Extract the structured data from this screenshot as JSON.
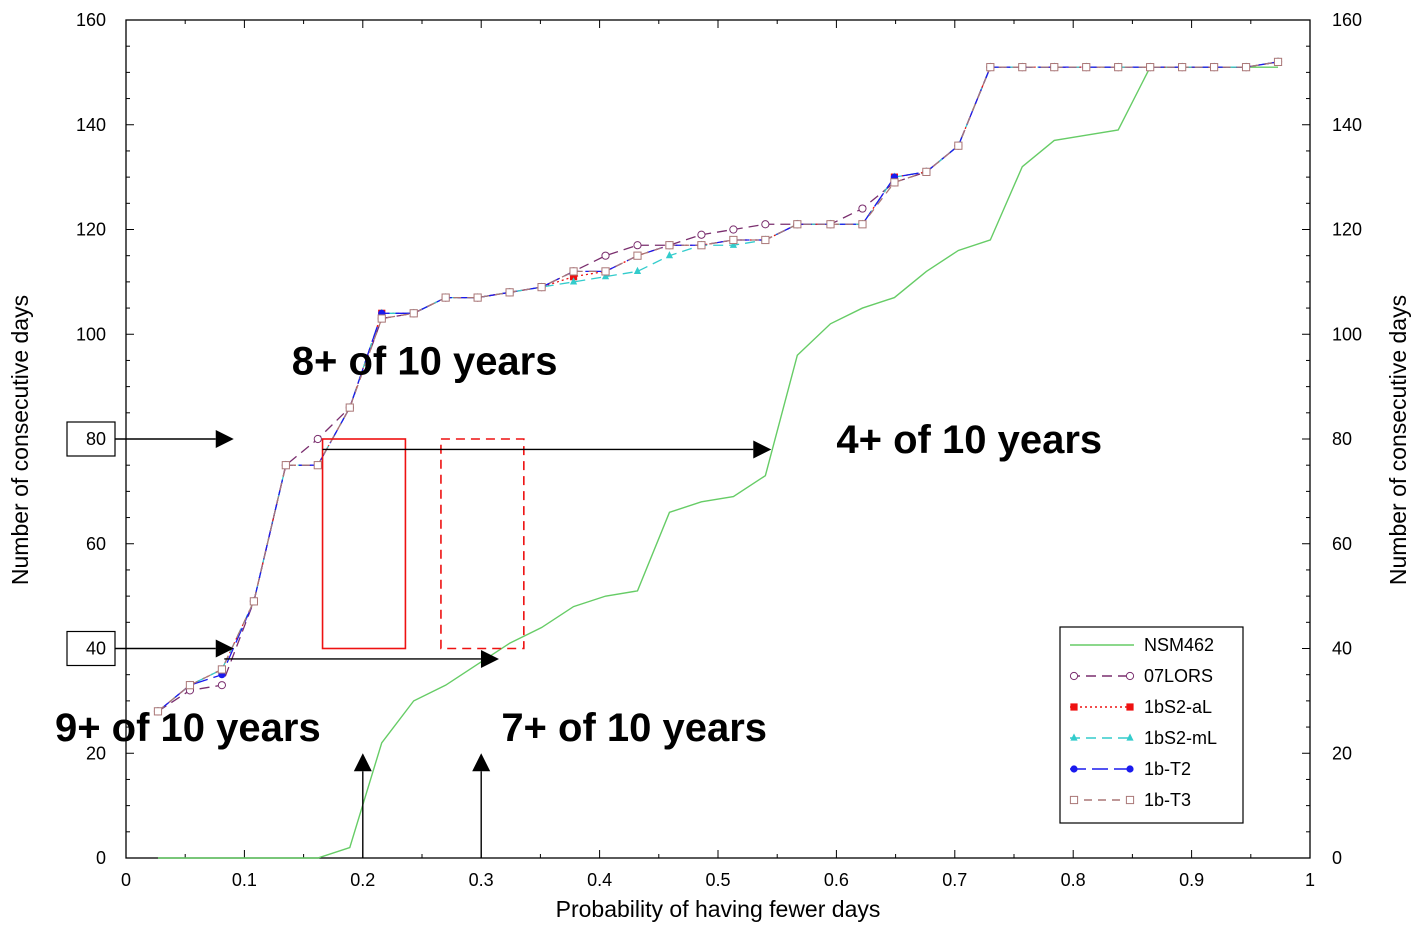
{
  "chart_data": {
    "type": "line",
    "title": "",
    "xlabel": "Probability of having fewer days",
    "ylabel": "Number of consecutive days",
    "ylabel_right": "Number of consecutive days",
    "xlim": [
      0,
      1
    ],
    "ylim": [
      0,
      160
    ],
    "x_ticks": [
      "0",
      "0.1",
      "0.2",
      "0.3",
      "0.4",
      "0.5",
      "0.6",
      "0.7",
      "0.8",
      "0.9",
      "1"
    ],
    "y_ticks": [
      "0",
      "20",
      "40",
      "60",
      "80",
      "100",
      "120",
      "140",
      "160"
    ],
    "grid": false,
    "legend_position": "bottom-right",
    "series": [
      {
        "name": "NSM462",
        "color": "#66cc66",
        "dash": "solid",
        "marker": "none",
        "x": [
          0.027,
          0.054,
          0.081,
          0.108,
          0.135,
          0.162,
          0.189,
          0.216,
          0.243,
          0.27,
          0.297,
          0.324,
          0.351,
          0.378,
          0.405,
          0.432,
          0.459,
          0.486,
          0.513,
          0.54,
          0.567,
          0.595,
          0.622,
          0.649,
          0.676,
          0.703,
          0.73,
          0.757,
          0.784,
          0.811,
          0.838,
          0.865,
          0.892,
          0.919,
          0.946,
          0.973
        ],
        "y": [
          0,
          0,
          0,
          0,
          0,
          0,
          2,
          22,
          30,
          33,
          37,
          41,
          44,
          48,
          50,
          51,
          66,
          68,
          69,
          73,
          96,
          102,
          105,
          107,
          112,
          116,
          118,
          132,
          137,
          138,
          139,
          151,
          151,
          151,
          151,
          151
        ]
      },
      {
        "name": "07LORS",
        "color": "#7a2e6e",
        "dash": "10,6",
        "marker": "open-circle",
        "x": [
          0.027,
          0.054,
          0.081,
          0.108,
          0.135,
          0.162,
          0.189,
          0.216,
          0.243,
          0.27,
          0.297,
          0.324,
          0.351,
          0.378,
          0.405,
          0.432,
          0.459,
          0.486,
          0.513,
          0.54,
          0.567,
          0.595,
          0.622,
          0.649,
          0.676,
          0.703,
          0.73,
          0.757,
          0.784,
          0.811,
          0.838,
          0.865,
          0.892,
          0.919,
          0.946,
          0.973
        ],
        "y": [
          28,
          32,
          33,
          49,
          75,
          80,
          86,
          103,
          104,
          107,
          107,
          108,
          109,
          112,
          115,
          117,
          117,
          119,
          120,
          121,
          121,
          121,
          124,
          129,
          131,
          136,
          151,
          151,
          151,
          151,
          151,
          151,
          151,
          151,
          151,
          152
        ]
      },
      {
        "name": "1bS2-aL",
        "color": "#ee1111",
        "dash": "2,3",
        "marker": "filled-square",
        "x": [
          0.027,
          0.054,
          0.081,
          0.108,
          0.135,
          0.162,
          0.189,
          0.216,
          0.243,
          0.27,
          0.297,
          0.324,
          0.351,
          0.378,
          0.405,
          0.432,
          0.459,
          0.486,
          0.513,
          0.54,
          0.567,
          0.595,
          0.622,
          0.649,
          0.676,
          0.703,
          0.73,
          0.757,
          0.784,
          0.811,
          0.838,
          0.865,
          0.892,
          0.919,
          0.946,
          0.973
        ],
        "y": [
          28,
          33,
          36,
          49,
          75,
          75,
          86,
          104,
          104,
          107,
          107,
          108,
          109,
          111,
          112,
          115,
          117,
          117,
          118,
          118,
          121,
          121,
          121,
          130,
          131,
          136,
          151,
          151,
          151,
          151,
          151,
          151,
          151,
          151,
          151,
          152
        ]
      },
      {
        "name": "1bS2-mL",
        "color": "#33cccc",
        "dash": "10,6",
        "marker": "filled-triangle",
        "x": [
          0.027,
          0.054,
          0.081,
          0.108,
          0.135,
          0.162,
          0.189,
          0.216,
          0.243,
          0.27,
          0.297,
          0.324,
          0.351,
          0.378,
          0.405,
          0.432,
          0.459,
          0.486,
          0.513,
          0.54,
          0.567,
          0.595,
          0.622,
          0.649,
          0.676,
          0.703,
          0.73,
          0.757,
          0.784,
          0.811,
          0.838,
          0.865,
          0.892,
          0.919,
          0.946,
          0.973
        ],
        "y": [
          28,
          33,
          36,
          49,
          75,
          75,
          86,
          104,
          104,
          107,
          107,
          108,
          109,
          110,
          111,
          112,
          115,
          117,
          117,
          118,
          121,
          121,
          121,
          130,
          131,
          136,
          151,
          151,
          151,
          151,
          151,
          151,
          151,
          151,
          151,
          152
        ]
      },
      {
        "name": "1b-T2",
        "color": "#1a1aee",
        "dash": "16,6",
        "marker": "filled-circle",
        "x": [
          0.027,
          0.054,
          0.081,
          0.108,
          0.135,
          0.162,
          0.189,
          0.216,
          0.243,
          0.27,
          0.297,
          0.324,
          0.351,
          0.378,
          0.405,
          0.432,
          0.459,
          0.486,
          0.513,
          0.54,
          0.567,
          0.595,
          0.622,
          0.649,
          0.676,
          0.703,
          0.73,
          0.757,
          0.784,
          0.811,
          0.838,
          0.865,
          0.892,
          0.919,
          0.946,
          0.973
        ],
        "y": [
          28,
          33,
          35,
          49,
          75,
          75,
          86,
          104,
          104,
          107,
          107,
          108,
          109,
          112,
          112,
          115,
          117,
          117,
          118,
          118,
          121,
          121,
          121,
          130,
          131,
          136,
          151,
          151,
          151,
          151,
          151,
          151,
          151,
          151,
          151,
          152
        ]
      },
      {
        "name": "1b-T3",
        "color": "#aa7777",
        "dash": "8,6",
        "marker": "open-square",
        "x": [
          0.027,
          0.054,
          0.081,
          0.108,
          0.135,
          0.162,
          0.189,
          0.216,
          0.243,
          0.27,
          0.297,
          0.324,
          0.351,
          0.378,
          0.405,
          0.432,
          0.459,
          0.486,
          0.513,
          0.54,
          0.567,
          0.595,
          0.622,
          0.649,
          0.676,
          0.703,
          0.73,
          0.757,
          0.784,
          0.811,
          0.838,
          0.865,
          0.892,
          0.919,
          0.946,
          0.973
        ],
        "y": [
          28,
          33,
          36,
          49,
          75,
          75,
          86,
          103,
          104,
          107,
          107,
          108,
          109,
          112,
          112,
          115,
          117,
          117,
          118,
          118,
          121,
          121,
          121,
          129,
          131,
          136,
          151,
          151,
          151,
          151,
          151,
          151,
          151,
          151,
          151,
          152
        ]
      }
    ],
    "annotations": {
      "texts": [
        {
          "text": "8+ of 10 years",
          "x": 0.14,
          "y": 95
        },
        {
          "text": "4+ of 10 years",
          "x": 0.6,
          "y": 80
        },
        {
          "text": "9+ of 10 years",
          "x": -0.06,
          "y": 25
        },
        {
          "text": "7+ of 10 years",
          "x": 0.317,
          "y": 25
        }
      ],
      "boxed_labels": [
        {
          "text": "80",
          "value": 80
        },
        {
          "text": "40",
          "value": 40
        }
      ],
      "arrows": [
        {
          "from": [
            0,
            80
          ],
          "to": [
            0.091,
            80
          ]
        },
        {
          "from": [
            0,
            40
          ],
          "to": [
            0.091,
            40
          ]
        },
        {
          "from": [
            0.166,
            78
          ],
          "to": [
            0.545,
            78
          ]
        },
        {
          "from": [
            0.083,
            38
          ],
          "to": [
            0.315,
            38
          ]
        },
        {
          "from": [
            0.2,
            0
          ],
          "to": [
            0.2,
            20
          ]
        },
        {
          "from": [
            0.3,
            0
          ],
          "to": [
            0.3,
            20
          ]
        }
      ],
      "rectangles": [
        {
          "x0": 0.166,
          "x1": 0.236,
          "y0": 40,
          "y1": 80,
          "style": "solid",
          "color": "#ee1111"
        },
        {
          "x0": 0.266,
          "x1": 0.336,
          "y0": 40,
          "y1": 80,
          "style": "dashed",
          "color": "#ee1111"
        }
      ]
    }
  }
}
